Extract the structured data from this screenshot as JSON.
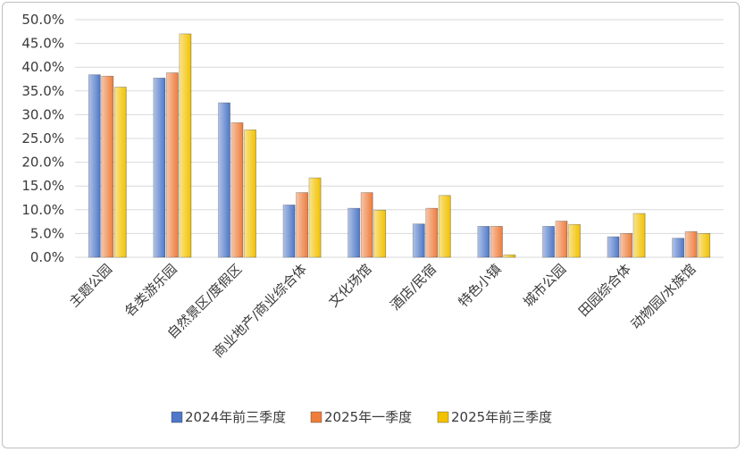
{
  "chart_data": {
    "type": "bar",
    "title": "",
    "xlabel": "",
    "ylabel": "",
    "ylim": [
      0,
      50
    ],
    "y_ticks": [
      "0.0%",
      "5.0%",
      "10.0%",
      "15.0%",
      "20.0%",
      "25.0%",
      "30.0%",
      "35.0%",
      "40.0%",
      "45.0%",
      "50.0%"
    ],
    "grid": true,
    "legend_position": "bottom",
    "categories": [
      "主题公园",
      "各类游乐园",
      "自然景区/度假区",
      "商业地产/商业综合体",
      "文化场馆",
      "酒店/民宿",
      "特色小镇",
      "城市公园",
      "田园综合体",
      "动物园/水族馆"
    ],
    "series": [
      {
        "name": "2024年前三季度",
        "color": "#4f78c8",
        "values": [
          38.4,
          37.7,
          32.5,
          11.0,
          10.3,
          7.0,
          6.5,
          6.5,
          4.3,
          4.0
        ]
      },
      {
        "name": "2025年一季度",
        "color": "#ee7d3c",
        "values": [
          38.1,
          38.8,
          28.3,
          13.6,
          13.6,
          10.3,
          6.5,
          7.6,
          5.0,
          5.4
        ]
      },
      {
        "name": "2025年前三季度",
        "color": "#f2c200",
        "values": [
          35.8,
          47.0,
          26.8,
          16.7,
          9.9,
          13.0,
          0.5,
          6.9,
          9.2,
          5.0
        ]
      }
    ]
  }
}
